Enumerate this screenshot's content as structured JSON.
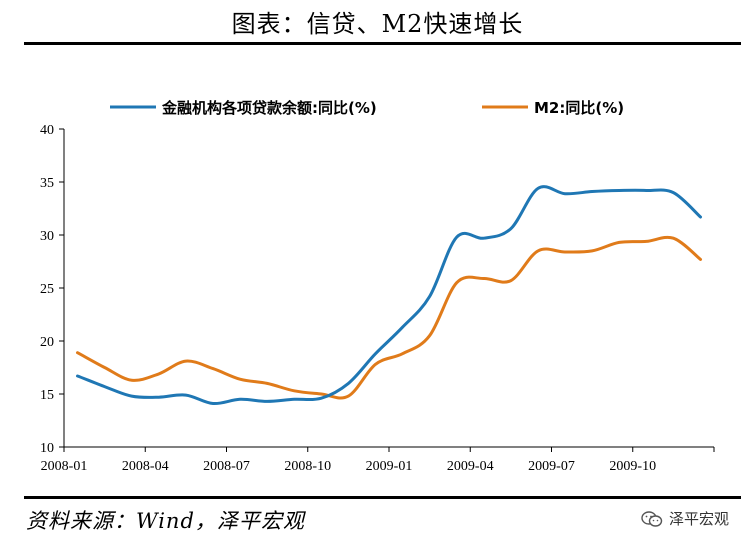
{
  "header": {
    "title": "图表：信贷、M2快速增长"
  },
  "footer": {
    "source": "资料来源：Wind，泽平宏观",
    "watermark": "泽平宏观"
  },
  "chart_data": {
    "type": "line",
    "x": [
      "2008-01",
      "2008-02",
      "2008-03",
      "2008-04",
      "2008-05",
      "2008-06",
      "2008-07",
      "2008-08",
      "2008-09",
      "2008-10",
      "2008-11",
      "2008-12",
      "2009-01",
      "2009-02",
      "2009-03",
      "2009-04",
      "2009-05",
      "2009-06",
      "2009-07",
      "2009-08",
      "2009-09",
      "2009-10",
      "2009-11",
      "2009-12"
    ],
    "xticks": [
      "2008-01",
      "2008-04",
      "2008-07",
      "2008-10",
      "2009-01",
      "2009-04",
      "2009-07",
      "2009-10"
    ],
    "ylim": [
      10,
      40
    ],
    "yticks": [
      10,
      15,
      20,
      25,
      30,
      35,
      40
    ],
    "grid": false,
    "legend_position": "top",
    "series": [
      {
        "name": "金融机构各项贷款余额:同比(%)",
        "color": "#1f77b4",
        "values": [
          16.7,
          15.7,
          14.8,
          14.7,
          14.9,
          14.1,
          14.5,
          14.3,
          14.5,
          14.6,
          16.0,
          18.8,
          21.3,
          24.2,
          29.8,
          29.7,
          30.6,
          34.4,
          33.9,
          34.1,
          34.2,
          34.2,
          34.0,
          31.7
        ]
      },
      {
        "name": "M2:同比(%)",
        "color": "#e07b1a",
        "values": [
          18.9,
          17.5,
          16.3,
          16.9,
          18.1,
          17.4,
          16.4,
          16.0,
          15.3,
          15.0,
          14.8,
          17.8,
          18.8,
          20.5,
          25.5,
          25.9,
          25.7,
          28.5,
          28.4,
          28.5,
          29.3,
          29.4,
          29.7,
          27.7
        ]
      }
    ]
  }
}
